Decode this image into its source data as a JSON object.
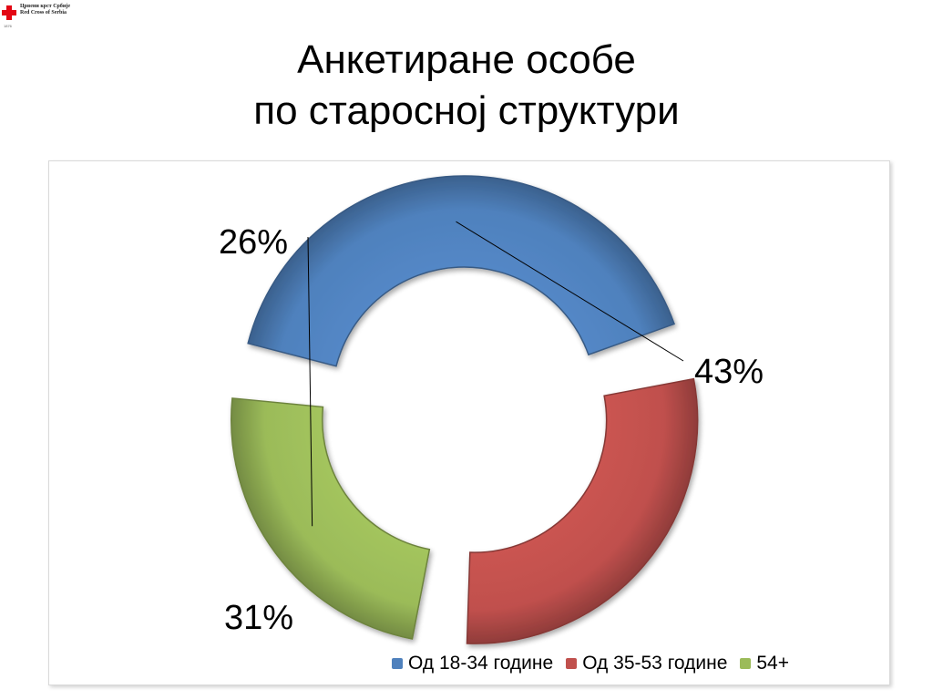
{
  "logo": {
    "line1": "Црвени крст Србије",
    "line2": "Red Cross of Serbia",
    "line3": "1876"
  },
  "title": {
    "line1": "Анкетиране особе",
    "line2": "по старосној структури"
  },
  "chart_data": {
    "type": "pie",
    "subtype": "exploded-doughnut",
    "categories": [
      "Од 18-34 године",
      "Од 35-53 године",
      "54+"
    ],
    "values": [
      43,
      31,
      26
    ],
    "labels": [
      "43%",
      "31%",
      "26%"
    ],
    "colors": [
      "#4f81bd",
      "#c0504d",
      "#9bbb59"
    ],
    "legend_position": "bottom-right"
  }
}
